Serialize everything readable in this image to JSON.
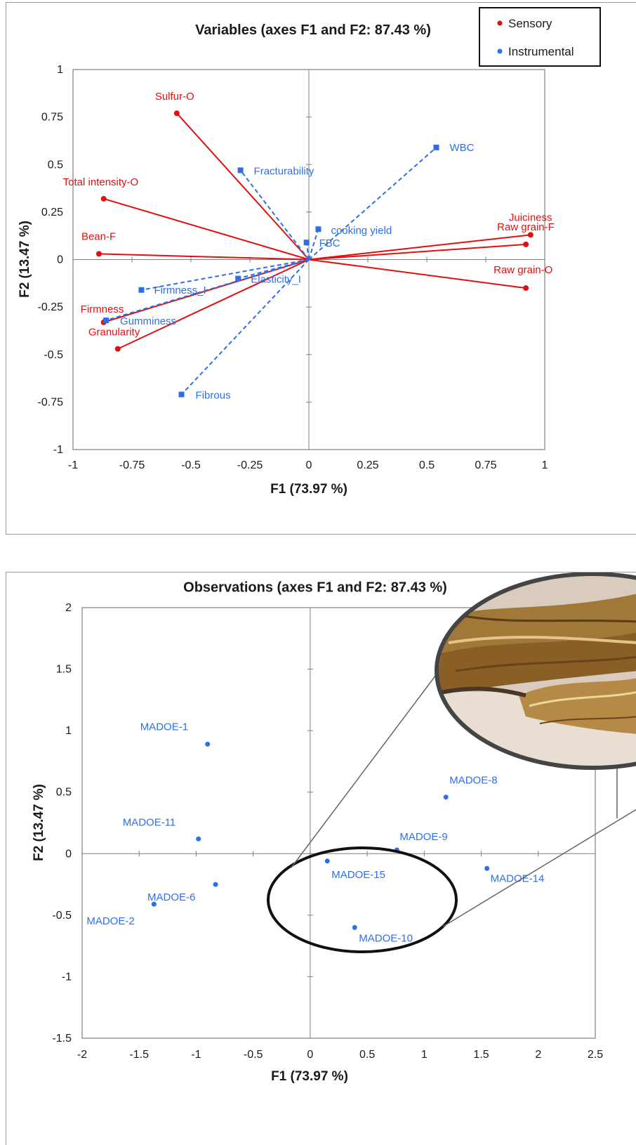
{
  "colors": {
    "sensory": "#e01010",
    "instrumental": "#2e6fe8",
    "axis": "#7f7f7f"
  },
  "chart_data": [
    {
      "type": "biplot",
      "title": "Variables (axes F1 and F2: 87.43 %)",
      "xlabel": "F1 (73.97 %)",
      "ylabel": "F2 (13.47 %)",
      "xlim": [
        -1,
        1
      ],
      "ylim": [
        -1,
        1
      ],
      "xticks": [
        "-1",
        "-0.75",
        "-0.5",
        "-0.25",
        "0",
        "0.25",
        "0.5",
        "0.75",
        "1"
      ],
      "yticks": [
        "1",
        "0.75",
        "0.5",
        "0.25",
        "0",
        "-0.25",
        "-0.5",
        "-0.75",
        "-1"
      ],
      "legend": {
        "position": "top-right",
        "entries": [
          "Sensory",
          "Instrumental"
        ]
      },
      "series": [
        {
          "name": "Sensory",
          "marker": "circle",
          "line": "solid",
          "points": [
            {
              "label": "Sulfur-O",
              "x": -0.56,
              "y": 0.77
            },
            {
              "label": "Total intensity-O",
              "x": -0.87,
              "y": 0.32
            },
            {
              "label": "Bean-F",
              "x": -0.89,
              "y": 0.03
            },
            {
              "label": "Firmness",
              "x": -0.87,
              "y": -0.33
            },
            {
              "label": "Granularity",
              "x": -0.81,
              "y": -0.47
            },
            {
              "label": "Juiciness",
              "x": 0.94,
              "y": 0.13
            },
            {
              "label": "Raw grain-F",
              "x": 0.92,
              "y": 0.08
            },
            {
              "label": "Raw grain-O",
              "x": 0.92,
              "y": -0.15
            }
          ]
        },
        {
          "name": "Instrumental",
          "marker": "square",
          "line": "dashed",
          "points": [
            {
              "label": "Fracturability",
              "x": -0.29,
              "y": 0.47
            },
            {
              "label": "WBC",
              "x": 0.54,
              "y": 0.59
            },
            {
              "label": "cooking yield",
              "x": 0.04,
              "y": 0.16
            },
            {
              "label": "FBC",
              "x": -0.01,
              "y": 0.09
            },
            {
              "label": "Elasticity_I",
              "x": -0.3,
              "y": -0.1
            },
            {
              "label": "Firmness_I",
              "x": -0.71,
              "y": -0.16
            },
            {
              "label": "Gumminess",
              "x": -0.86,
              "y": -0.32
            },
            {
              "label": "Fibrous",
              "x": -0.54,
              "y": -0.71
            }
          ]
        }
      ]
    },
    {
      "type": "scatter",
      "title": "Observations (axes F1 and F2: 87.43 %)",
      "xlabel": "F1 (73.97 %)",
      "ylabel": "F2 (13.47 %)",
      "xlim": [
        -2,
        2.5
      ],
      "ylim": [
        -1.5,
        2
      ],
      "xticks": [
        "-2",
        "-1.5",
        "-1",
        "-0.5",
        "0",
        "0.5",
        "1",
        "1.5",
        "2",
        "2.5"
      ],
      "yticks": [
        "2",
        "1.5",
        "1",
        "0.5",
        "0",
        "-0.5",
        "-1",
        "-1.5"
      ],
      "points": [
        {
          "label": "MADOE-1",
          "x": -0.9,
          "y": 0.89
        },
        {
          "label": "MADOE-11",
          "x": -0.98,
          "y": 0.12
        },
        {
          "label": "MADOE-6",
          "x": -0.83,
          "y": -0.25
        },
        {
          "label": "MADOE-2",
          "x": -1.37,
          "y": -0.41
        },
        {
          "label": "MADOE-8",
          "x": 1.19,
          "y": 0.46
        },
        {
          "label": "MADOE-9",
          "x": 0.76,
          "y": 0.03
        },
        {
          "label": "MADOE-15",
          "x": 0.15,
          "y": -0.06
        },
        {
          "label": "MADOE-14",
          "x": 1.55,
          "y": -0.12
        },
        {
          "label": "MADOE-10",
          "x": 0.39,
          "y": -0.6
        }
      ],
      "annotations": [
        "highlight-ellipse",
        "magnified-photo-inset"
      ]
    }
  ]
}
